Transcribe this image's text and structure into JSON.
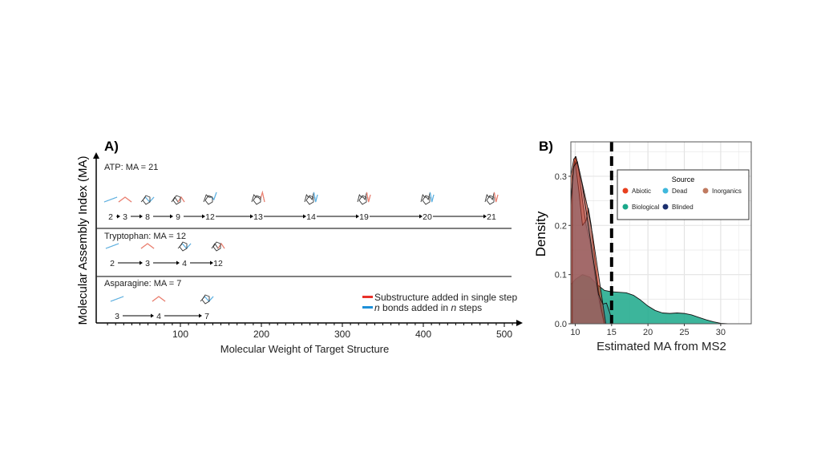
{
  "panel_a": {
    "label": "A)",
    "ylabel": "Molecular Assembly Index  (MA)",
    "xlabel": "Molecular Weight of Target Structure",
    "xticks": [
      "100",
      "200",
      "300",
      "400",
      "500"
    ],
    "sections": [
      {
        "title": "ATP: MA = 21",
        "steps": [
          "2",
          "3",
          "8",
          "9",
          "12",
          "13",
          "14",
          "19",
          "20",
          "21"
        ]
      },
      {
        "title": "Tryptophan: MA = 12",
        "steps": [
          "2",
          "3",
          "4",
          "12"
        ]
      },
      {
        "title": "Asparagine: MA = 7",
        "steps": [
          "3",
          "4",
          "7"
        ]
      }
    ],
    "legend": [
      {
        "label": "Substructure added in single step",
        "color": "#e8312a"
      },
      {
        "label": "bonds added in  steps",
        "prefix": "n",
        "mid": "n",
        "text1": " bonds added in ",
        "text2": " steps",
        "color": "#1e90d8"
      }
    ]
  },
  "chart_data": {
    "type": "area",
    "panel_label": "B)",
    "xlabel": "Estimated MA from MS2",
    "ylabel": "Density",
    "xlim": [
      9.4,
      34.2
    ],
    "ylim": [
      0,
      0.37
    ],
    "xticks": [
      10,
      15,
      20,
      25,
      30
    ],
    "yticks": [
      0.0,
      0.1,
      0.2,
      0.3
    ],
    "ytick_labels": [
      "0.0",
      "0.1",
      "0.2",
      "0.3"
    ],
    "grid": true,
    "vline": {
      "x": 15,
      "style": "dashed"
    },
    "legend": {
      "title": "Source",
      "placement": "top-right"
    },
    "series": [
      {
        "name": "Biological",
        "color": "#1aa88a",
        "x": [
          9.4,
          10,
          11,
          12,
          13,
          14,
          15,
          16,
          17,
          18,
          19,
          20,
          21,
          22,
          23,
          24,
          25,
          26,
          27,
          28,
          29,
          30,
          31
        ],
        "y": [
          0.08,
          0.09,
          0.1,
          0.095,
          0.08,
          0.068,
          0.065,
          0.064,
          0.063,
          0.058,
          0.048,
          0.036,
          0.027,
          0.022,
          0.021,
          0.022,
          0.021,
          0.018,
          0.013,
          0.008,
          0.004,
          0.001,
          0
        ]
      },
      {
        "name": "Inorganics",
        "color": "#c07a60",
        "x": [
          9.4,
          9.7,
          10,
          10.5,
          11,
          11.5,
          12,
          12.5,
          13,
          13.5,
          14
        ],
        "y": [
          0.24,
          0.31,
          0.34,
          0.31,
          0.25,
          0.2,
          0.17,
          0.12,
          0.07,
          0.03,
          0
        ]
      },
      {
        "name": "Dead",
        "color": "#3fb8dc",
        "x": [
          9.6,
          10,
          10.5,
          11,
          11.5,
          11.8,
          12.2,
          12.7,
          13.2,
          13.6,
          14
        ],
        "y": [
          0.3,
          0.33,
          0.27,
          0.2,
          0.21,
          0.235,
          0.2,
          0.13,
          0.07,
          0.03,
          0
        ]
      },
      {
        "name": "Abiotic",
        "color": "#e8401f",
        "x": [
          9.4,
          9.8,
          10.1,
          10.6,
          11.2,
          11.8,
          12.4,
          13,
          13.5,
          13.9,
          14.2
        ],
        "y": [
          0.3,
          0.335,
          0.34,
          0.31,
          0.27,
          0.23,
          0.18,
          0.12,
          0.07,
          0.03,
          0
        ]
      },
      {
        "name": "Blinded",
        "color": "#1b2f6e",
        "x": [
          9.4,
          9.8,
          10.3,
          11,
          11.8,
          12.6,
          13.2,
          13.8,
          14.3,
          14.8,
          15.1
        ],
        "y": [
          0.25,
          0.32,
          0.33,
          0.28,
          0.2,
          0.12,
          0.06,
          0.04,
          0.042,
          0.02,
          0
        ]
      }
    ]
  }
}
